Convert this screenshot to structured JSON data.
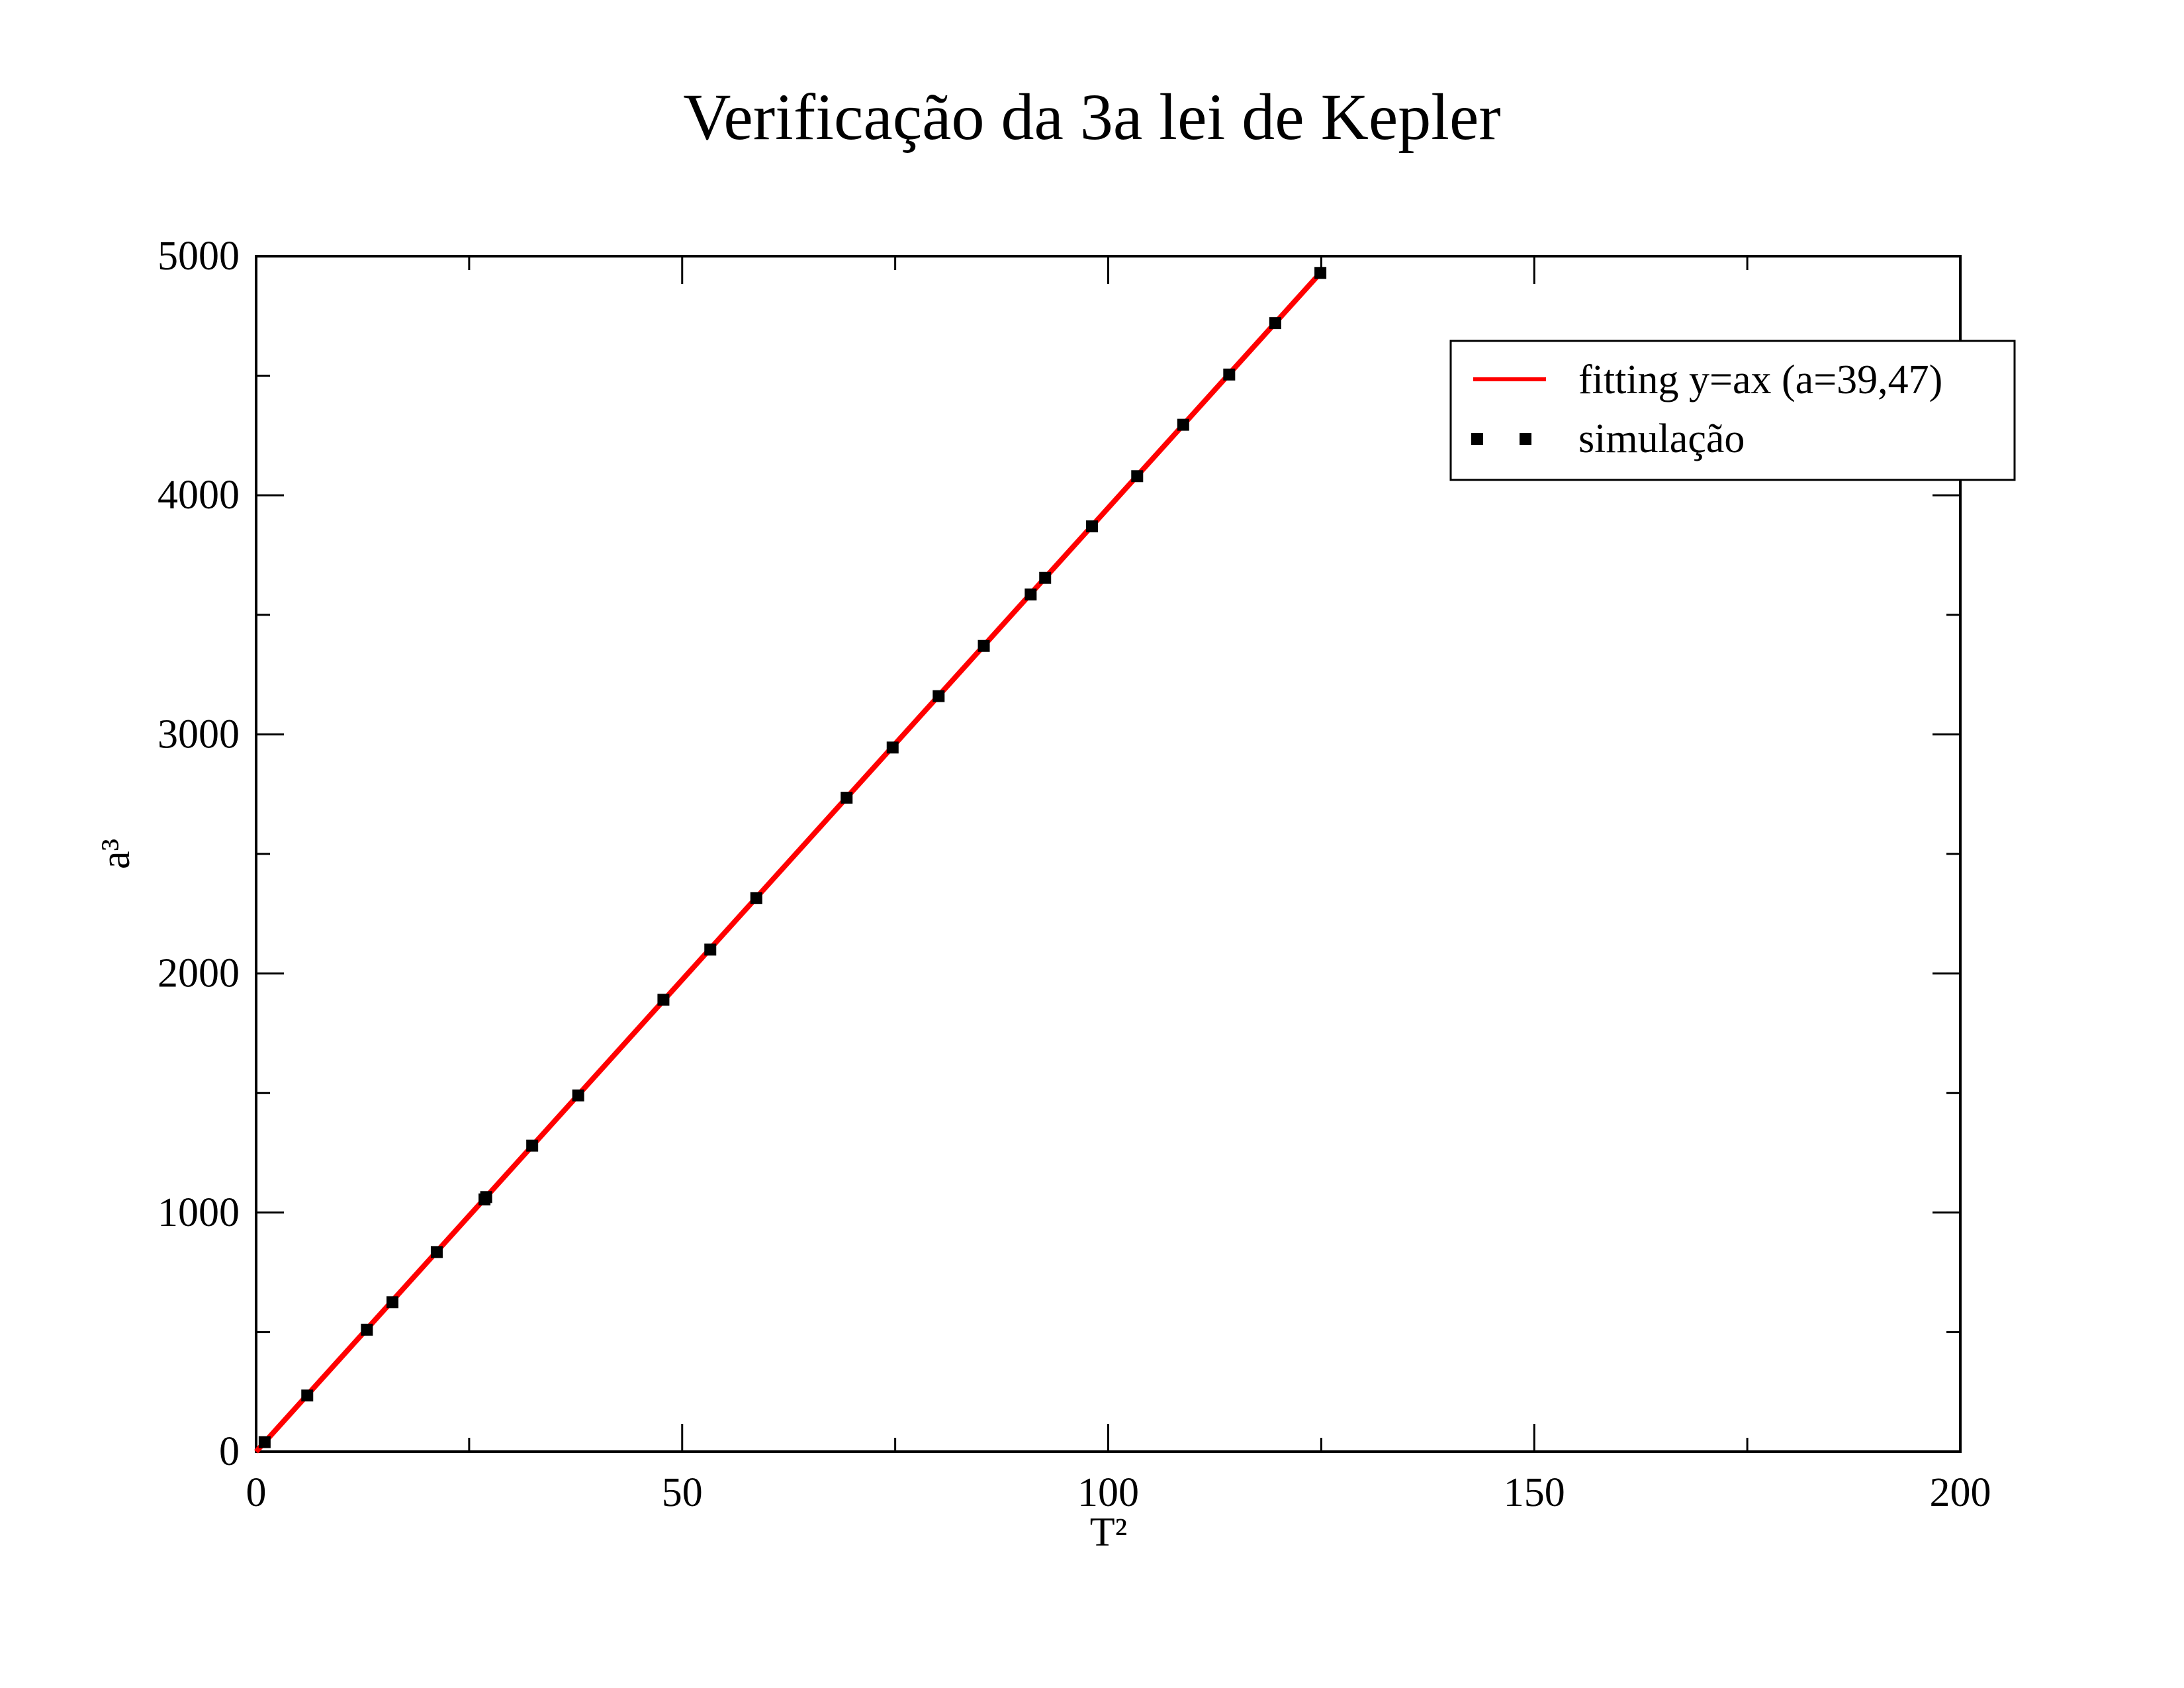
{
  "chart_data": {
    "type": "scatter",
    "title": "Verificação da 3a lei de Kepler",
    "xlabel": "T²",
    "ylabel": "a³",
    "xlim": [
      0,
      200
    ],
    "ylim": [
      0,
      5000
    ],
    "x_ticks": [
      "0",
      "50",
      "100",
      "150",
      "200"
    ],
    "y_ticks": [
      "0",
      "1000",
      "2000",
      "3000",
      "4000",
      "5000"
    ],
    "grid": false,
    "legend_position": "top-right",
    "series": [
      {
        "name": "fitting y=ax (a=39,47)",
        "kind": "line",
        "color": "#ff0000",
        "slope": 39.47,
        "x": [
          0,
          125
        ],
        "y": [
          0,
          4934
        ]
      },
      {
        "name": "simulação",
        "kind": "markers",
        "color": "#000000",
        "x": [
          1,
          6,
          13,
          16,
          21.2,
          26.8,
          27,
          32.4,
          37.8,
          47.8,
          53.3,
          58.7,
          69.3,
          74.7,
          80.1,
          85.4,
          90.9,
          92.6,
          98.1,
          103.4,
          108.8,
          114.2,
          119.6,
          124.9
        ],
        "y": [
          40,
          235,
          510,
          625,
          835,
          1055,
          1065,
          1280,
          1490,
          1890,
          2100,
          2315,
          2735,
          2945,
          3160,
          3370,
          3585,
          3655,
          3870,
          4080,
          4295,
          4505,
          4720,
          4930
        ]
      }
    ]
  }
}
